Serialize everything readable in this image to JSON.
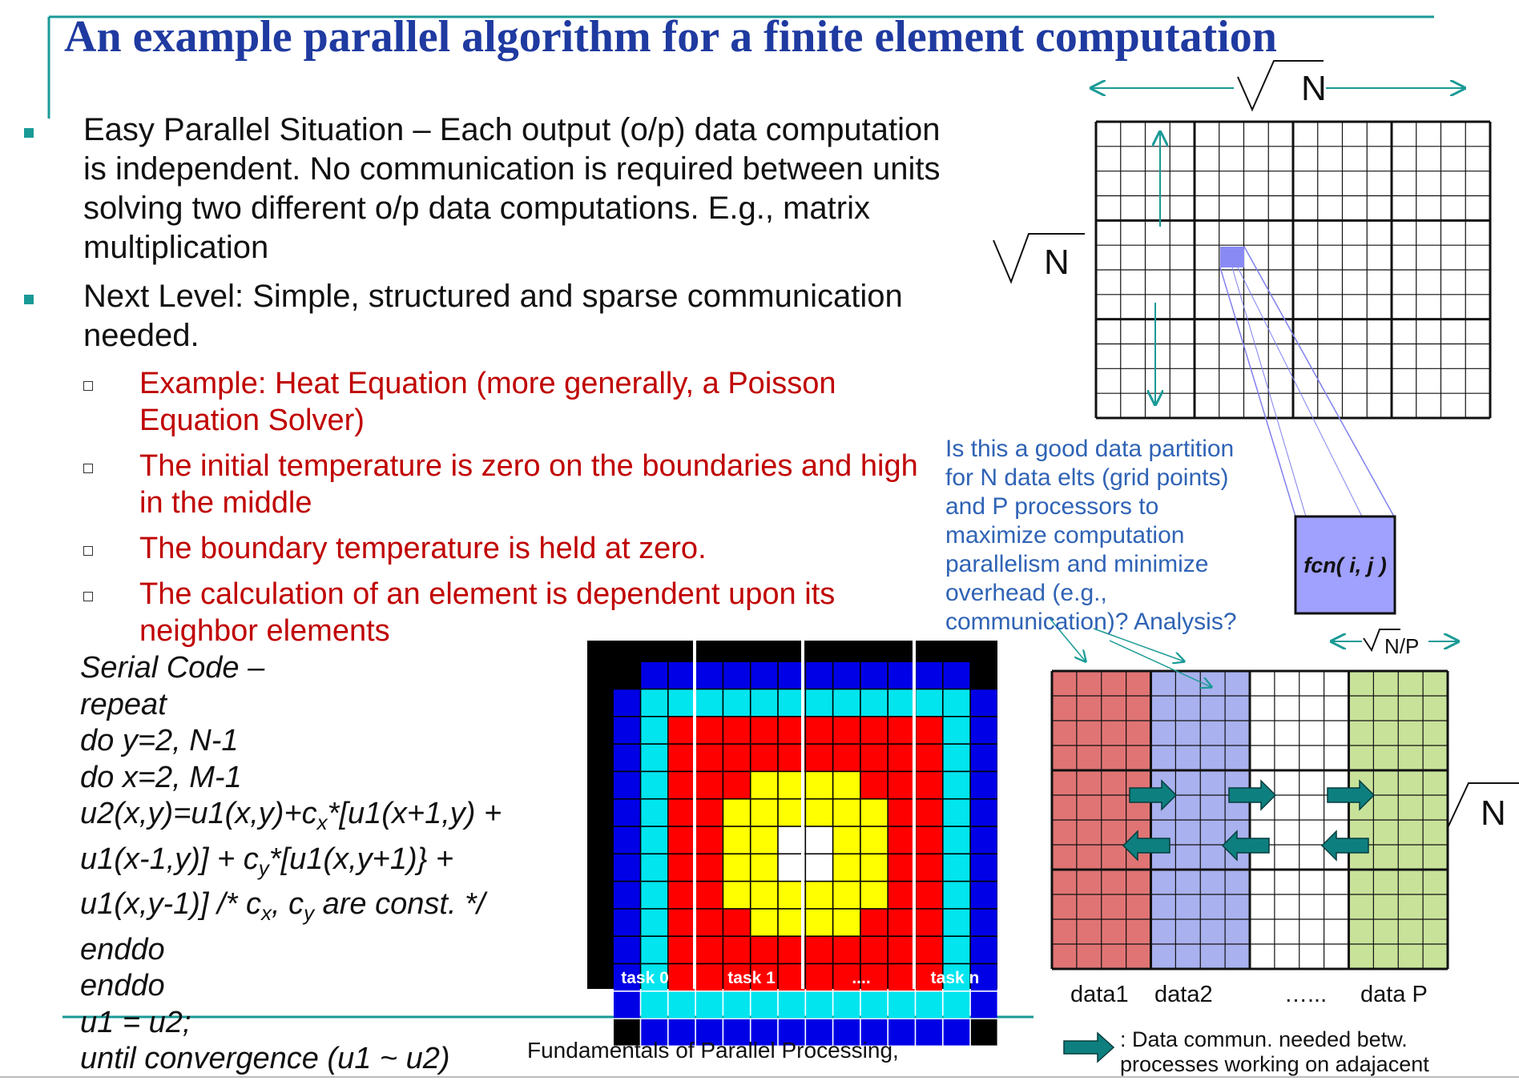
{
  "title": "An example parallel algorithm for a finite element computation",
  "bullets": [
    {
      "text": "Easy Parallel Situation – Each output (o/p) data computation is independent. No communication is required between units solving two different o/p data computations. E.g., matrix multiplication"
    },
    {
      "text": "Next Level: Simple, structured and sparse communication needed."
    }
  ],
  "subbullets": [
    {
      "text": "Example: Heat Equation (more generally, a Poisson Equation Solver)"
    },
    {
      "text": "The initial temperature is zero on the boundaries and high in the middle"
    },
    {
      "text": "The boundary temperature is held at zero."
    },
    {
      "text": "The calculation of an element is dependent upon its neighbor elements"
    }
  ],
  "code": {
    "l1": "Serial Code –",
    "l2": "repeat",
    "l3": "do y=2, N-1",
    "l4": "do x=2, M-1",
    "l5a": "u2(x,y)=u1(x,y)+c",
    "l5sub": "x",
    "l5b": "*[u1(x+1,y) +",
    "l6a": "u1(x-1,y)] + c",
    "l6sub": "y",
    "l6b": "*[u1(x,y+1)} +",
    "l7a": "u1(x,y-1)] /* c",
    "l7sub1": "x",
    "l7b": ", c",
    "l7sub2": "y",
    "l7c": " are const. */",
    "l8": "enddo",
    "l9": "enddo",
    "l10": "u1 = u2;",
    "l11": "until convergence (u1 ~ u2)"
  },
  "footer": "Fundamentals of Parallel Processing,",
  "grid_labels": {
    "n_top": "N",
    "n_left": "N",
    "n_right": "N",
    "n_over_p": "N/P",
    "fcn": "fcn( i, j )"
  },
  "heat_tasks": {
    "t0": "task 0",
    "t1": "task 1",
    "dots": "....",
    "tn": "task n"
  },
  "question": "Is this a good data partition for N data elts (grid points) and P processors to maximize computation parallelism and minimize overhead (e.g., communication)? Analysis?",
  "data_labels": {
    "d1": "data1",
    "d2": "data2",
    "dots": "…...",
    "dp": "data P"
  },
  "legend": {
    "line1": ": Data commun. needed betw.",
    "line2": "processes working on adajacent"
  },
  "colors": {
    "title": "#1f3aa0",
    "bullet_square": "#1a9a96",
    "sub_text": "#c00000",
    "rule": "#1a9a96",
    "heat_blue": "#0000e6",
    "heat_cyan": "#00e5ee",
    "heat_red": "#ff0000",
    "heat_yellow": "#ffff00",
    "part_red": "#e07474",
    "part_blue": "#a9b1ee",
    "part_green": "#c8e29a",
    "arrow": "#0e7f7f",
    "question": "#2f63b5"
  }
}
